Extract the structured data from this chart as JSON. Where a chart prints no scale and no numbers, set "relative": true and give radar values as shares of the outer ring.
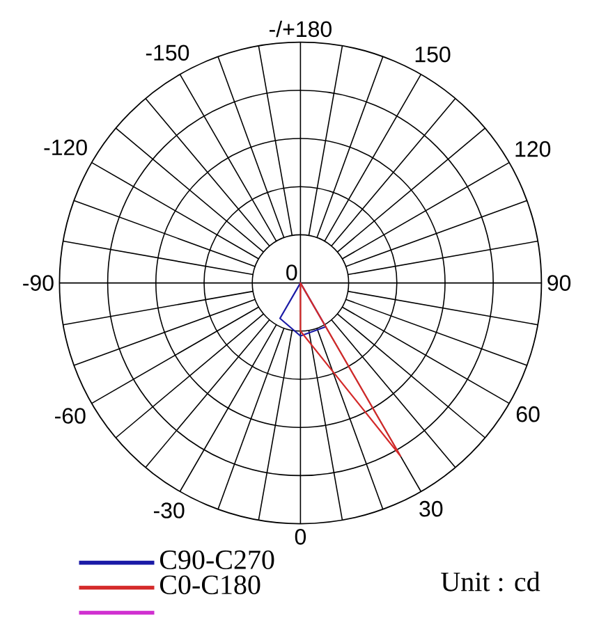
{
  "chart_data": {
    "type": "radar",
    "categories": [
      "-/+180",
      "150",
      "120",
      "90",
      "60",
      "30",
      "0",
      "-30",
      "-60",
      "-90",
      "-120",
      "-150"
    ],
    "series": [
      {
        "name": "C90-C270",
        "color": "#1a1aa6",
        "values": [
          0,
          0,
          0,
          0,
          0,
          0.21,
          0.22,
          0.17,
          0,
          0,
          0,
          0
        ]
      },
      {
        "name": "C0-C180",
        "color": "#d42a2a",
        "values": [
          0,
          0,
          0,
          0,
          0,
          0.83,
          0.2,
          0,
          0,
          0,
          0,
          0
        ]
      },
      {
        "color": "#d030d0",
        "values": [
          null,
          null,
          null,
          null,
          null,
          null,
          null,
          null,
          null,
          null,
          null,
          null
        ]
      }
    ],
    "relative": true,
    "grid": true,
    "legend": "bottom left",
    "annotations": [
      "0",
      "Unit : cd"
    ]
  }
}
